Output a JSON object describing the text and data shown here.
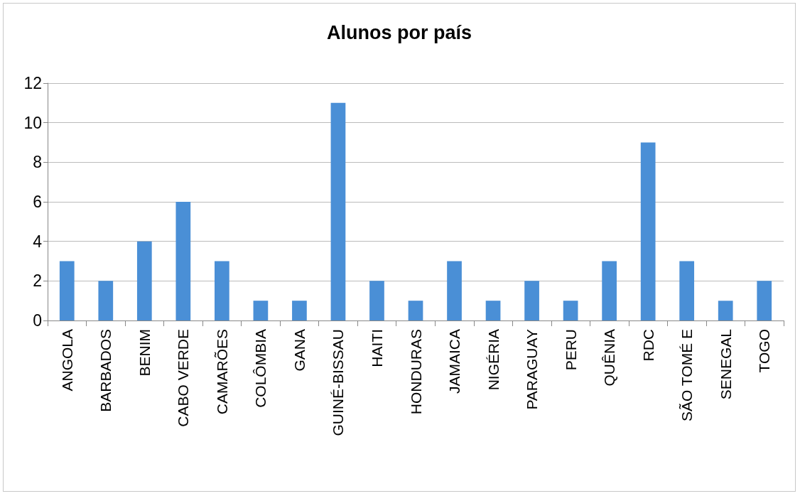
{
  "chart_data": {
    "type": "bar",
    "title": "Alunos por país",
    "categories": [
      "ANGOLA",
      "BARBADOS",
      "BENIM",
      "CABO VERDE",
      "CAMARÕES",
      "COLÔMBIA",
      "GANA",
      "GUINÉ-BISSAU",
      "HAITI",
      "HONDURAS",
      "JAMAICA",
      "NIGÉRIA",
      "PARAGUAY",
      "PERU",
      "QUÊNIA",
      "RDC",
      "SÃO TOMÉ E",
      "SENEGAL",
      "TOGO"
    ],
    "values": [
      3,
      2,
      4,
      6,
      3,
      1,
      1,
      11,
      2,
      1,
      3,
      1,
      2,
      1,
      3,
      9,
      3,
      1,
      2
    ],
    "color": "#4a8fd6",
    "ylim": [
      0,
      12
    ],
    "yticks": [
      0,
      2,
      4,
      6,
      8,
      10,
      12
    ],
    "grid": "y"
  }
}
